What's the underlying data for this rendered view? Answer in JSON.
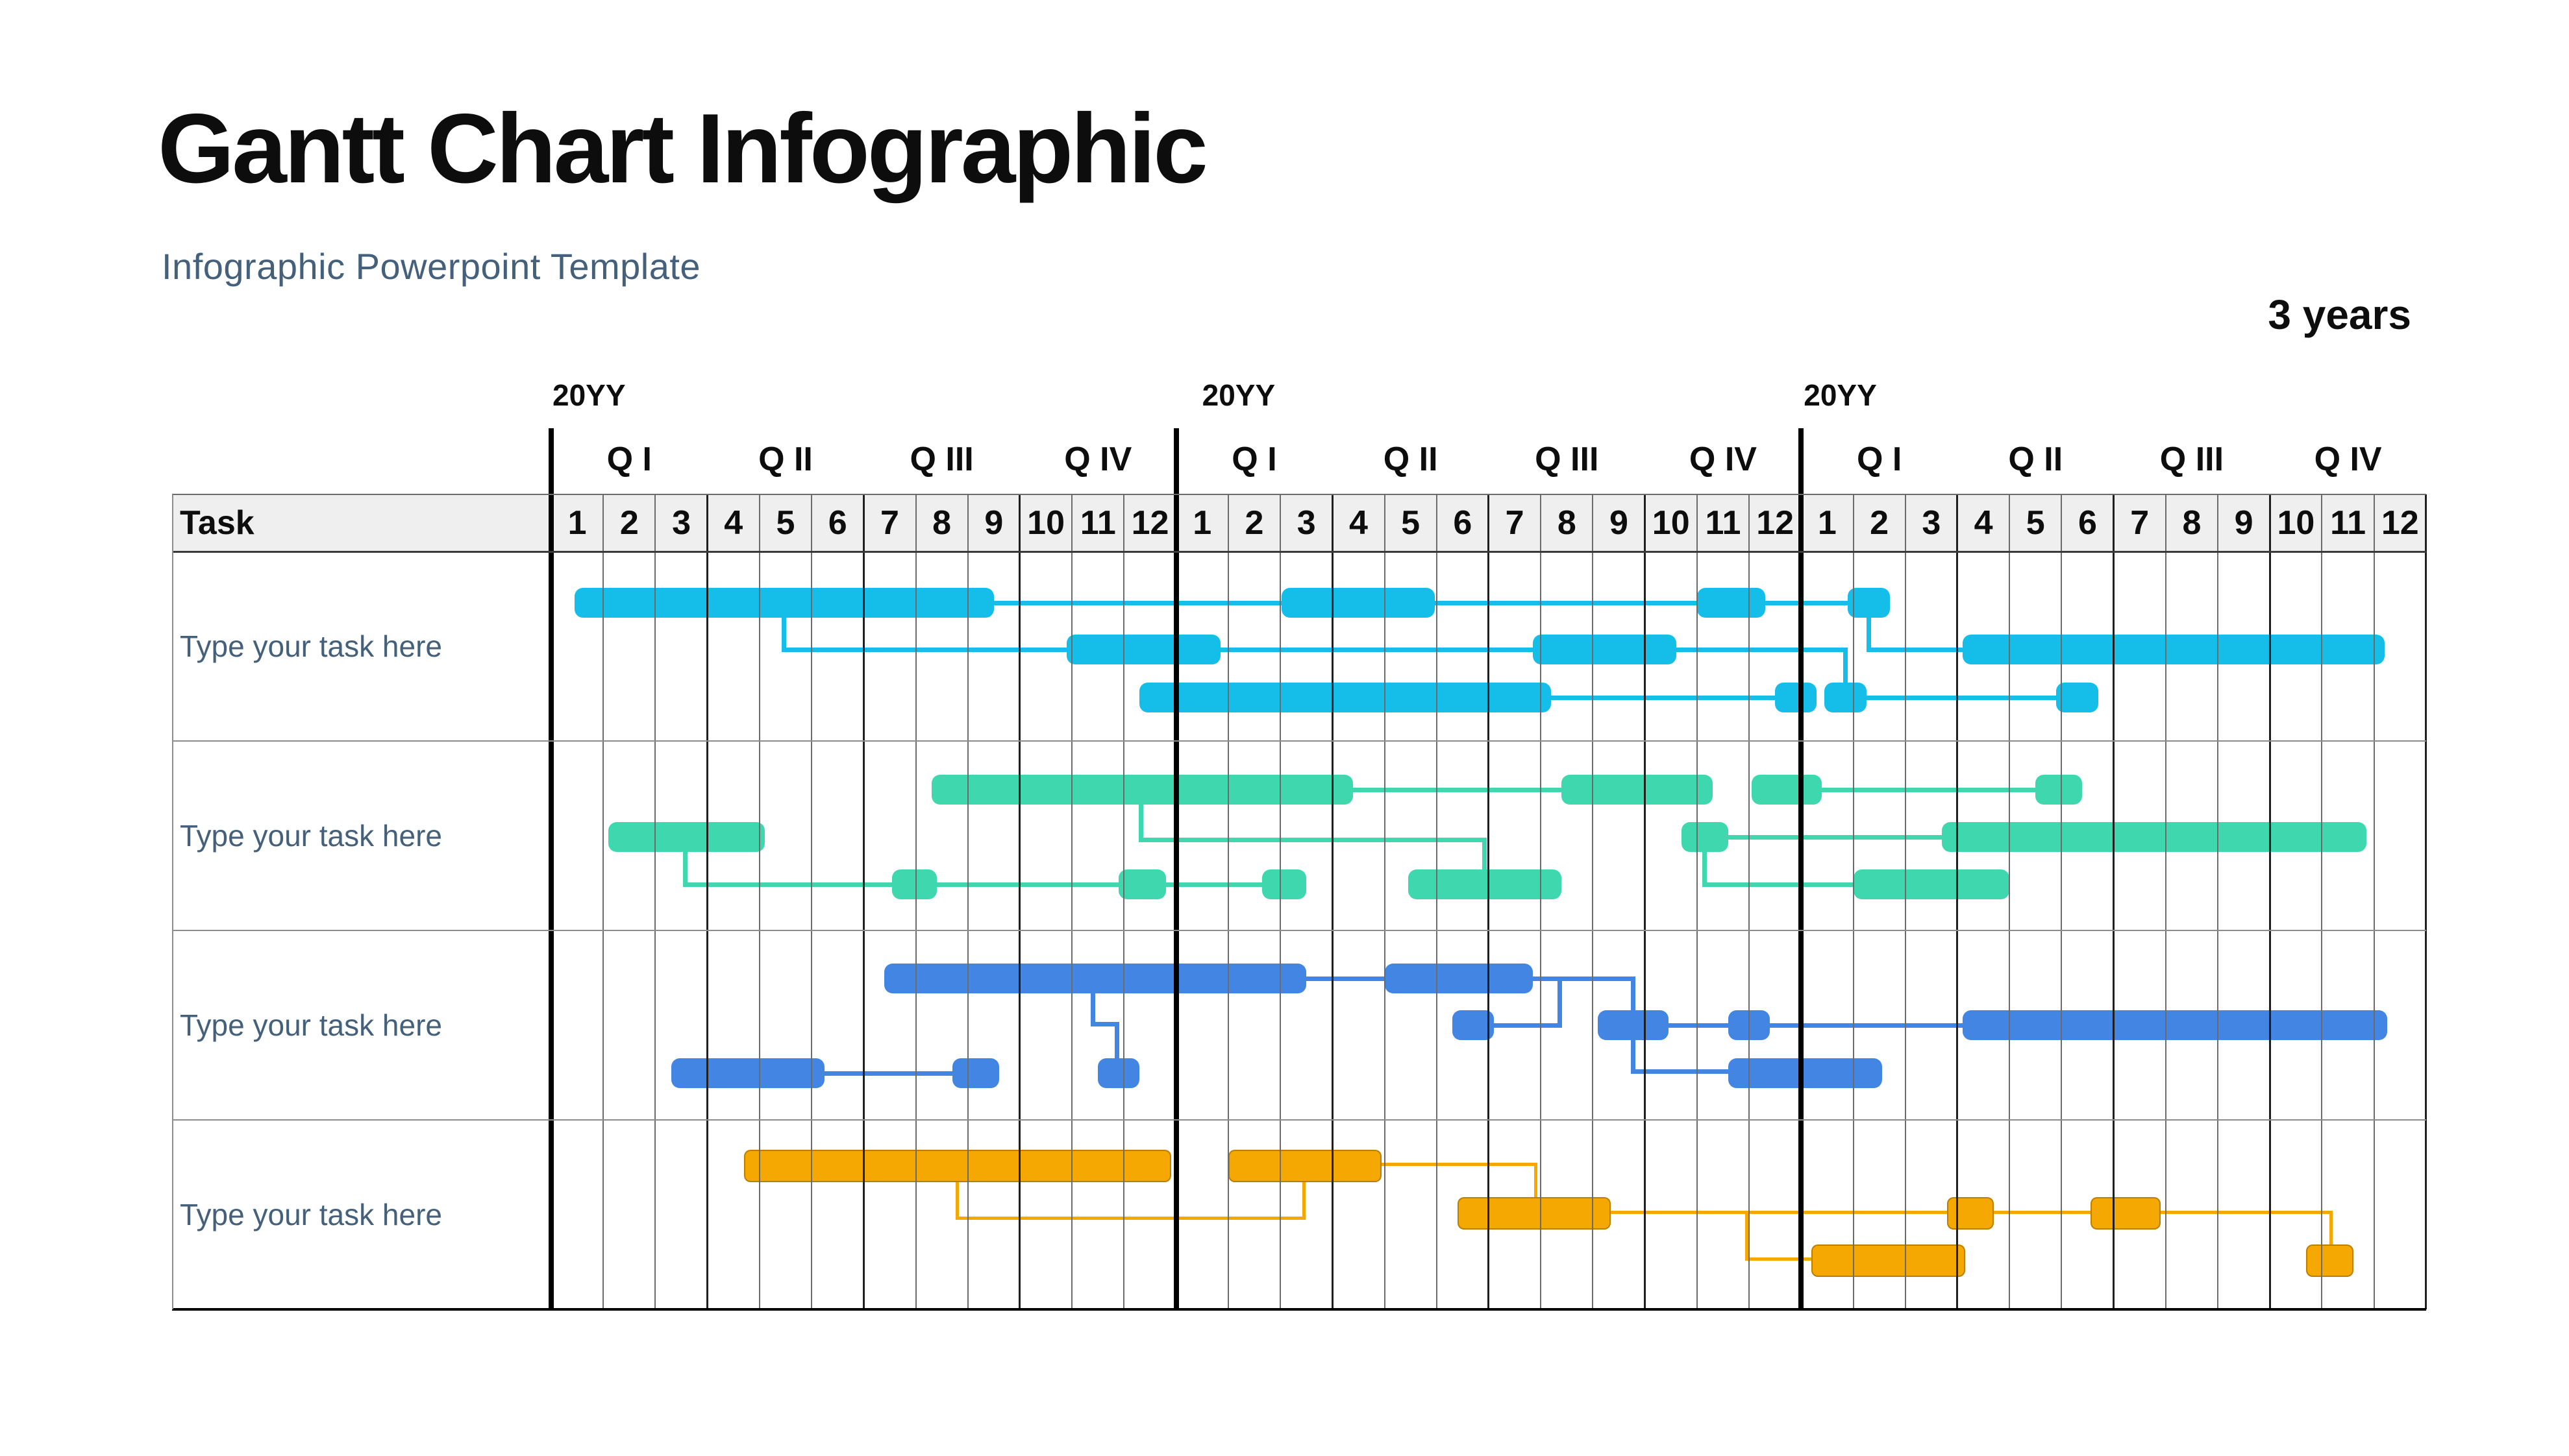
{
  "page": {
    "title": "Gantt Chart Infographic",
    "subtitle": "Infographic Powerpoint Template",
    "duration_label": "3 years"
  },
  "colors": {
    "title_text": "#0d0d0d",
    "subtitle_text": "#44607B",
    "task_label_text": "#44607B",
    "header_fill": "#EFEFEF",
    "grid_thin": "#6b6b6b",
    "grid_quarter": "#1f1f1f",
    "grid_year": "#000000",
    "row_divider": "#8c8c8c",
    "bottom_border": "#000000",
    "series_cyan": "#15BEE9",
    "series_teal": "#3FD8AE",
    "series_blue": "#4285E2",
    "series_orange": "#F5A702"
  },
  "gantt": {
    "task_header": "Task",
    "years": [
      {
        "label": "20YY",
        "quarters": [
          "Q I",
          "Q II",
          "Q III",
          "Q IV"
        ],
        "months": [
          "1",
          "2",
          "3",
          "4",
          "5",
          "6",
          "7",
          "8",
          "9",
          "10",
          "11",
          "12"
        ]
      },
      {
        "label": "20YY",
        "quarters": [
          "Q I",
          "Q II",
          "Q III",
          "Q IV"
        ],
        "months": [
          "1",
          "2",
          "3",
          "4",
          "5",
          "6",
          "7",
          "8",
          "9",
          "10",
          "11",
          "12"
        ]
      },
      {
        "label": "20YY",
        "quarters": [
          "Q I",
          "Q II",
          "Q III",
          "Q IV"
        ],
        "months": [
          "1",
          "2",
          "3",
          "4",
          "5",
          "6",
          "7",
          "8",
          "9",
          "10",
          "11",
          "12"
        ]
      }
    ]
  },
  "chart_data": {
    "type": "gantt",
    "time_axis": {
      "years": 3,
      "months_per_year": 12,
      "total_months": 36,
      "unit": "month"
    },
    "rows": [
      {
        "label": "Type your task here",
        "color": "#15BEE9",
        "bars": [
          {
            "lane": "a",
            "start": 0.45,
            "end": 8.5
          },
          {
            "lane": "a",
            "start": 14.03,
            "end": 16.96
          },
          {
            "lane": "a",
            "start": 22.0,
            "end": 23.31
          },
          {
            "lane": "a",
            "start": 24.9,
            "end": 25.7
          },
          {
            "lane": "b",
            "start": 9.9,
            "end": 12.85
          },
          {
            "lane": "b",
            "start": 18.85,
            "end": 21.6
          },
          {
            "lane": "b",
            "start": 27.1,
            "end": 35.2
          },
          {
            "lane": "c",
            "start": 11.3,
            "end": 19.2
          },
          {
            "lane": "c",
            "start": 23.5,
            "end": 24.3
          },
          {
            "lane": "c",
            "start": 24.45,
            "end": 25.25
          },
          {
            "lane": "c",
            "start": 28.9,
            "end": 29.7
          }
        ],
        "connectors": [
          [
            [
              8.5,
              929
            ],
            [
              14.03,
              929
            ]
          ],
          [
            [
              16.96,
              929
            ],
            [
              22.0,
              929
            ]
          ],
          [
            [
              23.31,
              929
            ],
            [
              24.9,
              929
            ]
          ],
          [
            [
              4.47,
              950
            ],
            [
              4.47,
              1001
            ],
            [
              9.9,
              1001
            ]
          ],
          [
            [
              12.85,
              1001
            ],
            [
              18.85,
              1001
            ]
          ],
          [
            [
              21.6,
              1001
            ],
            [
              24.85,
              1001
            ],
            [
              24.85,
              1053
            ]
          ],
          [
            [
              25.3,
              950
            ],
            [
              25.3,
              1001
            ],
            [
              27.1,
              1001
            ]
          ],
          [
            [
              19.2,
              1075
            ],
            [
              23.5,
              1075
            ]
          ],
          [
            [
              25.25,
              1075
            ],
            [
              28.9,
              1075
            ]
          ]
        ]
      },
      {
        "label": "Type your task here",
        "color": "#3FD8AE",
        "bars": [
          {
            "lane": "a",
            "start": 7.3,
            "end": 15.4
          },
          {
            "lane": "a",
            "start": 19.4,
            "end": 22.3
          },
          {
            "lane": "a",
            "start": 23.05,
            "end": 24.4
          },
          {
            "lane": "a",
            "start": 28.5,
            "end": 29.4
          },
          {
            "lane": "b",
            "start": 1.1,
            "end": 4.1
          },
          {
            "lane": "b",
            "start": 21.7,
            "end": 22.6
          },
          {
            "lane": "b",
            "start": 26.7,
            "end": 34.85
          },
          {
            "lane": "c",
            "start": 6.55,
            "end": 7.4
          },
          {
            "lane": "c",
            "start": 10.9,
            "end": 11.8
          },
          {
            "lane": "c",
            "start": 13.65,
            "end": 14.5
          },
          {
            "lane": "c",
            "start": 16.45,
            "end": 19.4
          },
          {
            "lane": "c",
            "start": 25.0,
            "end": 28.0
          }
        ],
        "connectors": [
          [
            [
              15.4,
              1217
            ],
            [
              19.4,
              1217
            ]
          ],
          [
            [
              24.4,
              1217
            ],
            [
              28.5,
              1217
            ]
          ],
          [
            [
              11.33,
              1240
            ],
            [
              11.33,
              1294
            ],
            [
              17.92,
              1294
            ],
            [
              17.92,
              1341
            ]
          ],
          [
            [
              2.58,
              1313
            ],
            [
              2.58,
              1363
            ],
            [
              6.55,
              1363
            ]
          ],
          [
            [
              7.4,
              1363
            ],
            [
              10.9,
              1363
            ]
          ],
          [
            [
              11.8,
              1363
            ],
            [
              13.65,
              1363
            ]
          ],
          [
            [
              22.15,
              1313
            ],
            [
              22.15,
              1363
            ],
            [
              25.0,
              1363
            ]
          ],
          [
            [
              22.6,
              1290
            ],
            [
              26.7,
              1290
            ]
          ]
        ]
      },
      {
        "label": "Type your task here",
        "color": "#4285E2",
        "bars": [
          {
            "lane": "a",
            "start": 6.4,
            "end": 14.5
          },
          {
            "lane": "a",
            "start": 16.0,
            "end": 18.85
          },
          {
            "lane": "b",
            "start": 17.3,
            "end": 18.1
          },
          {
            "lane": "b",
            "start": 20.1,
            "end": 21.45
          },
          {
            "lane": "b",
            "start": 22.6,
            "end": 23.4
          },
          {
            "lane": "b",
            "start": 27.1,
            "end": 35.25
          },
          {
            "lane": "c",
            "start": 2.3,
            "end": 5.25
          },
          {
            "lane": "c",
            "start": 7.7,
            "end": 8.6
          },
          {
            "lane": "c",
            "start": 10.5,
            "end": 11.3
          },
          {
            "lane": "c",
            "start": 22.6,
            "end": 25.55
          }
        ],
        "connectors": [
          [
            [
              5.25,
              1654
            ],
            [
              7.7,
              1654
            ]
          ],
          [
            [
              14.5,
              1508
            ],
            [
              16.0,
              1508
            ]
          ],
          [
            [
              10.4,
              1532
            ],
            [
              10.4,
              1578
            ],
            [
              10.86,
              1578
            ],
            [
              10.86,
              1632
            ]
          ],
          [
            [
              18.85,
              1508
            ],
            [
              20.77,
              1508
            ],
            [
              20.77,
              1651
            ],
            [
              22.6,
              1651
            ]
          ],
          [
            [
              19.37,
              1508
            ],
            [
              19.37,
              1580
            ],
            [
              18.12,
              1580
            ]
          ],
          [
            [
              21.45,
              1580
            ],
            [
              22.6,
              1580
            ]
          ],
          [
            [
              23.4,
              1580
            ],
            [
              27.1,
              1580
            ]
          ]
        ]
      },
      {
        "label": "Type your task here",
        "color": "#F5A702",
        "bar_border": "rgba(115,80,0,0.45)",
        "bars": [
          {
            "lane": "a",
            "start": 3.7,
            "end": 11.85
          },
          {
            "lane": "a",
            "start": 13.0,
            "end": 15.9
          },
          {
            "lane": "b",
            "start": 17.4,
            "end": 20.3
          },
          {
            "lane": "b",
            "start": 26.8,
            "end": 27.65
          },
          {
            "lane": "b",
            "start": 29.55,
            "end": 30.85
          },
          {
            "lane": "c",
            "start": 24.2,
            "end": 27.1
          },
          {
            "lane": "c",
            "start": 33.7,
            "end": 34.55
          }
        ],
        "connectors": [
          [
            [
              7.8,
              1816
            ],
            [
              7.8,
              1877
            ],
            [
              14.45,
              1877
            ],
            [
              14.45,
              1818
            ]
          ],
          [
            [
              15.9,
              1794
            ],
            [
              18.9,
              1794
            ],
            [
              18.9,
              1847
            ]
          ],
          [
            [
              20.3,
              1868
            ],
            [
              34.17,
              1868
            ],
            [
              34.17,
              1920
            ]
          ],
          [
            [
              22.95,
              1868
            ],
            [
              22.95,
              1940
            ],
            [
              24.2,
              1940
            ]
          ]
        ]
      }
    ]
  }
}
